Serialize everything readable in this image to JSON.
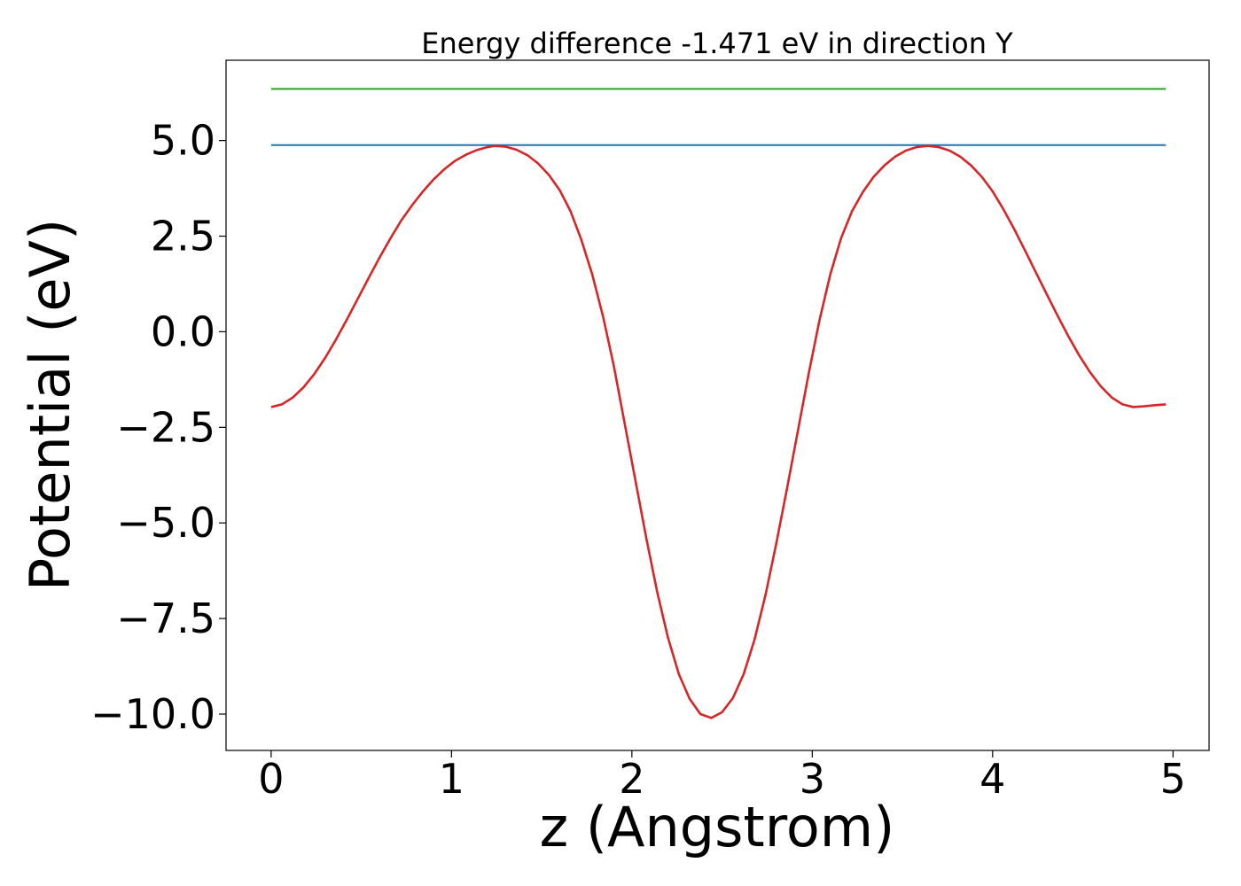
{
  "chart_data": {
    "type": "line",
    "title": "Energy difference -1.471 eV in direction Y",
    "xlabel": "z (Angstrom)",
    "ylabel": "Potential (eV)",
    "xlim": [
      -0.25,
      5.2
    ],
    "ylim": [
      -10.95,
      7.1
    ],
    "xticks": [
      0,
      1,
      2,
      3,
      4,
      5
    ],
    "xtick_labels": [
      "0",
      "1",
      "2",
      "3",
      "4",
      "5"
    ],
    "yticks": [
      5.0,
      2.5,
      0.0,
      -2.5,
      -5.0,
      -7.5,
      -10.0
    ],
    "ytick_labels": [
      "5.0",
      "2.5",
      "0.0",
      "−2.5",
      "−5.0",
      "−7.5",
      "−10.0"
    ],
    "grid": false,
    "series": [
      {
        "color": "#2ca02c",
        "style": "hline",
        "x": [
          0.0,
          4.96
        ],
        "y": [
          6.35,
          6.35
        ]
      },
      {
        "color": "#1f77b4",
        "style": "hline",
        "x": [
          0.0,
          4.96
        ],
        "y": [
          4.88,
          4.88
        ]
      },
      {
        "color": "#d62728",
        "style": "line",
        "x": [
          0.0,
          0.06,
          0.12,
          0.18,
          0.24,
          0.3,
          0.36,
          0.42,
          0.48,
          0.54,
          0.6,
          0.66,
          0.72,
          0.78,
          0.84,
          0.9,
          0.96,
          1.02,
          1.08,
          1.14,
          1.2,
          1.24,
          1.3,
          1.36,
          1.42,
          1.48,
          1.54,
          1.6,
          1.66,
          1.72,
          1.78,
          1.84,
          1.9,
          1.96,
          2.02,
          2.08,
          2.14,
          2.2,
          2.26,
          2.32,
          2.38,
          2.44,
          2.5,
          2.56,
          2.62,
          2.68,
          2.74,
          2.8,
          2.86,
          2.92,
          2.98,
          3.04,
          3.1,
          3.16,
          3.22,
          3.28,
          3.34,
          3.4,
          3.46,
          3.52,
          3.58,
          3.64,
          3.7,
          3.76,
          3.82,
          3.88,
          3.94,
          4.0,
          4.06,
          4.12,
          4.18,
          4.24,
          4.3,
          4.36,
          4.42,
          4.48,
          4.54,
          4.6,
          4.66,
          4.72,
          4.78,
          4.84,
          4.9,
          4.96
        ],
        "y": [
          -1.97,
          -1.9,
          -1.72,
          -1.45,
          -1.1,
          -0.68,
          -0.2,
          0.32,
          0.86,
          1.4,
          1.93,
          2.43,
          2.9,
          3.3,
          3.66,
          3.98,
          4.25,
          4.47,
          4.63,
          4.75,
          4.83,
          4.86,
          4.84,
          4.76,
          4.62,
          4.4,
          4.1,
          3.7,
          3.15,
          2.4,
          1.5,
          0.4,
          -0.9,
          -2.4,
          -3.9,
          -5.4,
          -6.8,
          -8.0,
          -8.95,
          -9.6,
          -10.0,
          -10.1,
          -9.95,
          -9.58,
          -8.95,
          -8.05,
          -6.9,
          -5.55,
          -4.1,
          -2.6,
          -1.1,
          0.3,
          1.5,
          2.45,
          3.15,
          3.65,
          4.05,
          4.35,
          4.58,
          4.74,
          4.83,
          4.86,
          4.83,
          4.74,
          4.58,
          4.35,
          4.05,
          3.67,
          3.2,
          2.68,
          2.12,
          1.55,
          0.98,
          0.42,
          -0.12,
          -0.62,
          -1.06,
          -1.43,
          -1.72,
          -1.9,
          -1.97,
          -1.95,
          -1.92,
          -1.9
        ]
      }
    ]
  }
}
